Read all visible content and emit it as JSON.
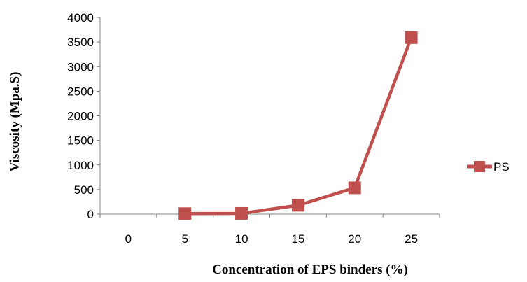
{
  "chart_data": {
    "type": "line",
    "categories": [
      "0",
      "5",
      "10",
      "15",
      "20",
      "25"
    ],
    "series": [
      {
        "name": "PS",
        "color": "#C0504D",
        "values": [
          null,
          10,
          15,
          180,
          535,
          3590
        ]
      }
    ],
    "xlabel": "Concentration of EPS binders (%)",
    "ylabel": "Viscosity (Mpa.S)",
    "ylim": [
      0,
      4000
    ],
    "yticks": [
      0,
      500,
      1000,
      1500,
      2000,
      2500,
      3000,
      3500,
      4000
    ],
    "legend_position": "right",
    "grid": false,
    "marker": "square"
  }
}
